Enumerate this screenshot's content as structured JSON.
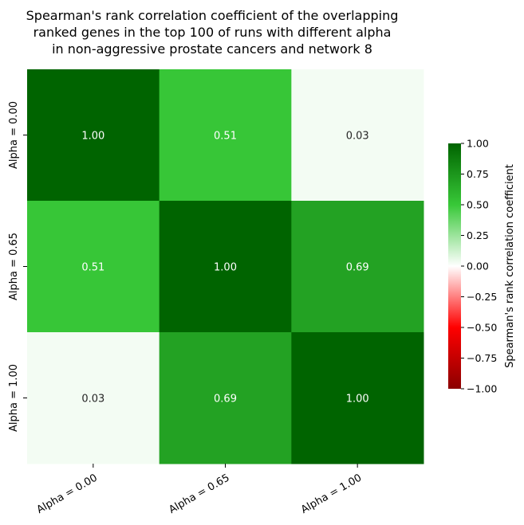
{
  "chart_data": {
    "type": "heatmap",
    "title_lines": [
      "Spearman's rank correlation coefficient of the overlapping",
      "ranked genes in the top 100 of runs with different alpha",
      "in non-aggressive prostate cancers and network 8"
    ],
    "x_categories": [
      "Alpha = 0.00",
      "Alpha = 0.65",
      "Alpha = 1.00"
    ],
    "y_categories": [
      "Alpha = 0.00",
      "Alpha = 0.65",
      "Alpha = 1.00"
    ],
    "values": [
      [
        1.0,
        0.51,
        0.03
      ],
      [
        0.51,
        1.0,
        0.69
      ],
      [
        0.03,
        0.69,
        1.0
      ]
    ],
    "value_labels": [
      [
        "1.00",
        "0.51",
        "0.03"
      ],
      [
        "0.51",
        "1.00",
        "0.69"
      ],
      [
        "0.03",
        "0.69",
        "1.00"
      ]
    ],
    "colorbar": {
      "label": "Spearman's rank correlation coefficient",
      "range": [
        -1.0,
        1.0
      ],
      "ticks": [
        1.0,
        0.75,
        0.5,
        0.25,
        0.0,
        -0.25,
        -0.5,
        -0.75,
        -1.0
      ],
      "tick_labels": [
        "1.00",
        "0.75",
        "0.50",
        "0.25",
        "0.00",
        "−0.25",
        "−0.50",
        "−0.75",
        "−1.00"
      ],
      "colors": {
        "neg_end": "#8b0000",
        "neg_mid": "#ff0000",
        "center": "#ffffff",
        "pos_mid": "#38c838",
        "pos_end": "#006400"
      }
    }
  }
}
